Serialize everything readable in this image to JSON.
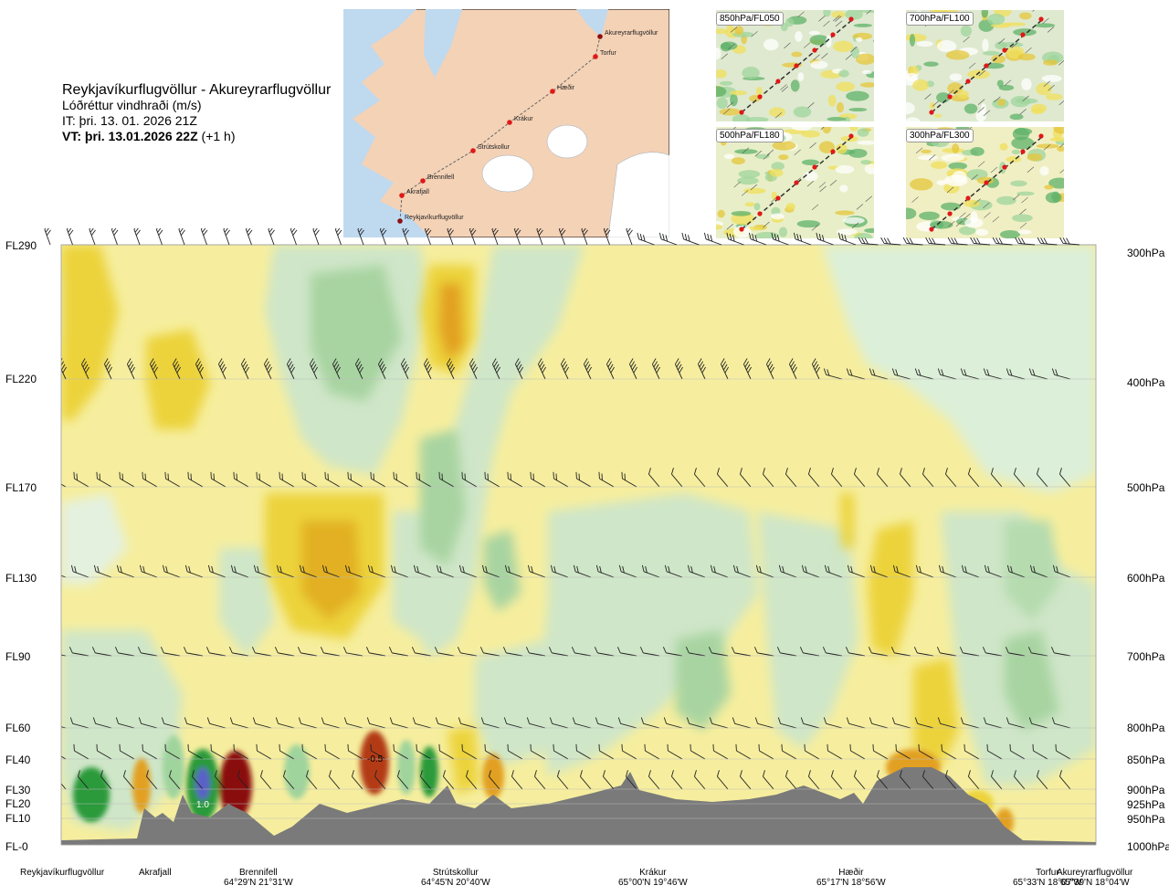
{
  "title": {
    "route": "Reykjavíkurflugvöllur - Akureyrarflugvöllur",
    "variable": "Lóðréttur vindhraði (m/s)",
    "issue_time": "IT: þri. 13. 01. 2026 21Z",
    "valid_prefix": "VT: þri. 13.01.2026 22Z",
    "valid_suffix": " (+1 h)"
  },
  "route_map": {
    "waypoints": [
      "Reykjavíkurflugvöllur",
      "Akrafjall",
      "Brennifell",
      "Strútskollur",
      "Krákur",
      "Hæðir",
      "Torfur",
      "Akureyrarflugvöllur"
    ]
  },
  "thumbnails": [
    {
      "label": "850hPa/FL050"
    },
    {
      "label": "700hPa/FL100"
    },
    {
      "label": "500hPa/FL180"
    },
    {
      "label": "300hPa/FL300"
    }
  ],
  "left_axis": [
    "FL290",
    "FL220",
    "FL170",
    "FL130",
    "FL90",
    "FL60",
    "FL40",
    "FL30",
    "FL20",
    "FL10",
    "FL-0"
  ],
  "right_axis": [
    "300hPa",
    "400hPa",
    "500hPa",
    "600hPa",
    "700hPa",
    "800hPa",
    "850hPa",
    "900hPa",
    "925hPa",
    "950hPa",
    "1000hPa"
  ],
  "stations": [
    {
      "name": "Reykjavíkurflugvöllur",
      "coord": ""
    },
    {
      "name": "Akrafjall",
      "coord": ""
    },
    {
      "name": "Brennifell",
      "coord": "64°29'N 21°31'W"
    },
    {
      "name": "Strútskollur",
      "coord": "64°45'N 20°40'W"
    },
    {
      "name": "Krákur",
      "coord": "65°00'N 19°46'W"
    },
    {
      "name": "Hæðir",
      "coord": "65°17'N 18°56'W"
    },
    {
      "name": "Torfur",
      "coord": "65°33'N 18°07'W"
    },
    {
      "name": "Akureyrarflugvöllur",
      "coord": "65°39'N 18°04'W"
    }
  ],
  "annotations": [
    "1.0",
    "-0.5"
  ],
  "chart_data": {
    "type": "heatmap",
    "title": "Lóðréttur vindhraði (m/s)",
    "x_stations": [
      "Reykjavíkurflugvöllur",
      "Akrafjall",
      "Brennifell",
      "Strútskollur",
      "Krákur",
      "Hæðir",
      "Torfur",
      "Akureyrarflugvöllur"
    ],
    "y_levels_hPa": [
      300,
      400,
      500,
      600,
      700,
      800,
      850,
      900,
      925,
      950,
      1000
    ],
    "y_levels_FL": [
      "FL290",
      "FL220",
      "FL170",
      "FL130",
      "FL90",
      "FL60",
      "FL40",
      "FL30",
      "FL20",
      "FL10",
      "FL-0"
    ],
    "contour_labels": [
      1.0,
      -0.5
    ],
    "colors": {
      "strong_down": "#2a9a3a",
      "down": "#9fd49c",
      "weak_down": "#d8eed6",
      "near_zero": "#fdfbe0",
      "weak_up": "#f6ee9e",
      "up": "#ecd33a",
      "strong_up": "#e2a020",
      "very_strong_up": "#b23a12",
      "extreme_up": "#8a0f0f",
      "extreme_down": "#5a60c8",
      "terrain": "#7a7a7a"
    }
  }
}
